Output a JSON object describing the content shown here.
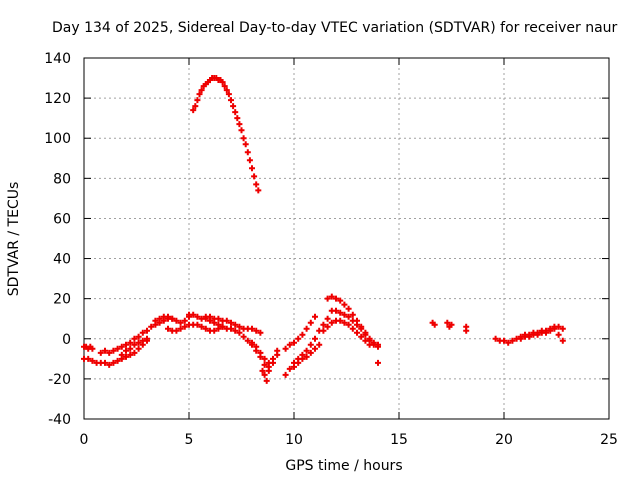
{
  "chart_data": {
    "type": "scatter",
    "title": "Day 134 of 2025, Sidereal Day-to-day VTEC variation (SDTVAR) for receiver naur",
    "xlabel": "GPS time / hours",
    "ylabel": "SDTVAR / TECUs",
    "xlim": [
      0,
      25
    ],
    "ylim": [
      -40,
      140
    ],
    "xticks": [
      "0",
      "5",
      "10",
      "15",
      "20",
      "25"
    ],
    "yticks": [
      "-40",
      "-20",
      "0",
      "20",
      "40",
      "60",
      "80",
      "100",
      "120",
      "140"
    ],
    "grid": true,
    "marker": "plus",
    "color": "#ee0000",
    "series": [
      {
        "name": "SDTVAR",
        "points": [
          [
            0.0,
            -4
          ],
          [
            0.1,
            -4
          ],
          [
            0.2,
            -5
          ],
          [
            0.3,
            -4
          ],
          [
            0.4,
            -5
          ],
          [
            0.0,
            -10
          ],
          [
            0.2,
            -10
          ],
          [
            0.4,
            -11
          ],
          [
            0.6,
            -12
          ],
          [
            0.8,
            -12
          ],
          [
            1.0,
            -12
          ],
          [
            1.2,
            -13
          ],
          [
            1.4,
            -12
          ],
          [
            1.6,
            -11
          ],
          [
            1.8,
            -10
          ],
          [
            2.0,
            -9
          ],
          [
            2.2,
            -8
          ],
          [
            2.4,
            -7
          ],
          [
            2.6,
            -5
          ],
          [
            2.8,
            -3
          ],
          [
            3.0,
            -1
          ],
          [
            0.8,
            -7
          ],
          [
            1.0,
            -6
          ],
          [
            1.2,
            -7
          ],
          [
            1.4,
            -6
          ],
          [
            1.6,
            -5
          ],
          [
            1.8,
            -4
          ],
          [
            2.0,
            -3
          ],
          [
            2.2,
            -2
          ],
          [
            2.4,
            0
          ],
          [
            2.6,
            1
          ],
          [
            2.8,
            3
          ],
          [
            3.0,
            4
          ],
          [
            3.2,
            6
          ],
          [
            3.4,
            7
          ],
          [
            3.6,
            8
          ],
          [
            3.8,
            9
          ],
          [
            4.0,
            10
          ],
          [
            4.2,
            10
          ],
          [
            4.4,
            9
          ],
          [
            4.6,
            8
          ],
          [
            4.8,
            9
          ],
          [
            5.0,
            11
          ],
          [
            1.8,
            -8
          ],
          [
            2.0,
            -6
          ],
          [
            2.2,
            -5
          ],
          [
            2.4,
            -3
          ],
          [
            2.6,
            -2
          ],
          [
            2.8,
            -1
          ],
          [
            3.0,
            0
          ],
          [
            3.4,
            9
          ],
          [
            3.6,
            10
          ],
          [
            3.8,
            11
          ],
          [
            4.0,
            11
          ],
          [
            4.2,
            10
          ],
          [
            4.0,
            5
          ],
          [
            4.2,
            4
          ],
          [
            4.4,
            4
          ],
          [
            4.6,
            5
          ],
          [
            4.8,
            6
          ],
          [
            5.0,
            7
          ],
          [
            5.2,
            7
          ],
          [
            5.4,
            7
          ],
          [
            5.6,
            6
          ],
          [
            5.8,
            5
          ],
          [
            6.0,
            4
          ],
          [
            6.2,
            4
          ],
          [
            6.4,
            5
          ],
          [
            6.6,
            6
          ],
          [
            5.0,
            12
          ],
          [
            5.2,
            12
          ],
          [
            5.4,
            11
          ],
          [
            5.6,
            10
          ],
          [
            5.8,
            10
          ],
          [
            6.0,
            9
          ],
          [
            6.2,
            8
          ],
          [
            6.4,
            7
          ],
          [
            6.6,
            6
          ],
          [
            6.8,
            5
          ],
          [
            7.0,
            5
          ],
          [
            7.2,
            4
          ],
          [
            7.4,
            3
          ],
          [
            7.6,
            1
          ],
          [
            7.8,
            -1
          ],
          [
            8.0,
            -3
          ],
          [
            8.2,
            -6
          ],
          [
            8.4,
            -9
          ],
          [
            8.6,
            -13
          ],
          [
            8.8,
            -16
          ],
          [
            9.0,
            -12
          ],
          [
            9.2,
            -8
          ],
          [
            5.8,
            11
          ],
          [
            6.0,
            11
          ],
          [
            6.2,
            10
          ],
          [
            6.4,
            10
          ],
          [
            6.6,
            9
          ],
          [
            6.8,
            9
          ],
          [
            7.0,
            8
          ],
          [
            7.2,
            7
          ],
          [
            7.4,
            6
          ],
          [
            7.6,
            5
          ],
          [
            7.8,
            5
          ],
          [
            8.0,
            5
          ],
          [
            8.2,
            4
          ],
          [
            8.4,
            3
          ],
          [
            8.0,
            -2
          ],
          [
            8.2,
            -4
          ],
          [
            8.4,
            -7
          ],
          [
            8.6,
            -10
          ],
          [
            8.8,
            -12
          ],
          [
            9.0,
            -10
          ],
          [
            9.2,
            -6
          ],
          [
            8.6,
            -18
          ],
          [
            8.7,
            -21
          ],
          [
            8.8,
            -14
          ],
          [
            8.5,
            -16
          ],
          [
            9.6,
            -18
          ],
          [
            9.8,
            -15
          ],
          [
            10.0,
            -12
          ],
          [
            10.2,
            -10
          ],
          [
            10.4,
            -8
          ],
          [
            10.6,
            -6
          ],
          [
            10.8,
            -3
          ],
          [
            11.0,
            0
          ],
          [
            11.2,
            4
          ],
          [
            11.4,
            7
          ],
          [
            11.6,
            10
          ],
          [
            9.6,
            -5
          ],
          [
            9.8,
            -3
          ],
          [
            10.0,
            -2
          ],
          [
            10.2,
            0
          ],
          [
            10.4,
            2
          ],
          [
            10.6,
            5
          ],
          [
            10.8,
            8
          ],
          [
            11.0,
            11
          ],
          [
            10.0,
            -14
          ],
          [
            10.2,
            -12
          ],
          [
            10.4,
            -10
          ],
          [
            10.6,
            -9
          ],
          [
            10.8,
            -7
          ],
          [
            11.0,
            -5
          ],
          [
            11.2,
            -3
          ],
          [
            11.4,
            4
          ],
          [
            11.6,
            6
          ],
          [
            11.8,
            8
          ],
          [
            12.0,
            9
          ],
          [
            12.2,
            9
          ],
          [
            12.4,
            8
          ],
          [
            12.6,
            7
          ],
          [
            12.8,
            5
          ],
          [
            13.0,
            3
          ],
          [
            13.2,
            1
          ],
          [
            13.4,
            -1
          ],
          [
            13.6,
            -3
          ],
          [
            11.6,
            20
          ],
          [
            11.8,
            21
          ],
          [
            12.0,
            20
          ],
          [
            12.2,
            19
          ],
          [
            12.4,
            17
          ],
          [
            12.6,
            15
          ],
          [
            12.8,
            12
          ],
          [
            13.0,
            9
          ],
          [
            13.2,
            6
          ],
          [
            13.4,
            3
          ],
          [
            13.6,
            0
          ],
          [
            13.8,
            -2
          ],
          [
            14.0,
            -3
          ],
          [
            11.8,
            14
          ],
          [
            12.0,
            14
          ],
          [
            12.2,
            13
          ],
          [
            12.4,
            12
          ],
          [
            12.6,
            11
          ],
          [
            12.8,
            9
          ],
          [
            13.0,
            7
          ],
          [
            13.2,
            5
          ],
          [
            13.4,
            2
          ],
          [
            13.6,
            -1
          ],
          [
            13.8,
            -3
          ],
          [
            14.0,
            -4
          ],
          [
            14.0,
            -12
          ],
          [
            16.6,
            8
          ],
          [
            16.7,
            7
          ],
          [
            17.3,
            8
          ],
          [
            17.4,
            6
          ],
          [
            17.5,
            7
          ],
          [
            18.2,
            6
          ],
          [
            18.2,
            4
          ],
          [
            19.6,
            0
          ],
          [
            19.8,
            -1
          ],
          [
            20.0,
            -1
          ],
          [
            20.2,
            -2
          ],
          [
            20.4,
            -1
          ],
          [
            20.6,
            0
          ],
          [
            20.8,
            1
          ],
          [
            21.0,
            2
          ],
          [
            21.2,
            2
          ],
          [
            21.4,
            3
          ],
          [
            21.6,
            3
          ],
          [
            21.8,
            4
          ],
          [
            22.0,
            4
          ],
          [
            22.2,
            5
          ],
          [
            22.4,
            6
          ],
          [
            22.6,
            6
          ],
          [
            22.8,
            5
          ],
          [
            20.8,
            0
          ],
          [
            21.0,
            1
          ],
          [
            21.2,
            1
          ],
          [
            21.4,
            2
          ],
          [
            21.6,
            2
          ],
          [
            21.8,
            3
          ],
          [
            22.0,
            3
          ],
          [
            22.2,
            4
          ],
          [
            22.4,
            5
          ],
          [
            22.6,
            2
          ],
          [
            22.8,
            -1
          ],
          [
            5.2,
            114
          ],
          [
            5.3,
            116
          ],
          [
            5.4,
            119
          ],
          [
            5.5,
            122
          ],
          [
            5.6,
            124
          ],
          [
            5.7,
            126
          ],
          [
            5.8,
            127
          ],
          [
            5.9,
            128
          ],
          [
            6.0,
            129
          ],
          [
            6.1,
            130
          ],
          [
            6.2,
            130
          ],
          [
            6.3,
            130
          ],
          [
            6.4,
            129
          ],
          [
            6.5,
            129
          ],
          [
            6.6,
            128
          ],
          [
            6.7,
            126
          ],
          [
            6.8,
            124
          ],
          [
            6.9,
            122
          ],
          [
            7.0,
            119
          ],
          [
            7.1,
            116
          ],
          [
            7.2,
            113
          ],
          [
            7.3,
            110
          ],
          [
            7.4,
            107
          ],
          [
            7.5,
            104
          ],
          [
            7.6,
            100
          ],
          [
            7.7,
            97
          ],
          [
            7.8,
            93
          ],
          [
            7.9,
            89
          ],
          [
            8.0,
            85
          ],
          [
            8.1,
            81
          ],
          [
            8.2,
            77
          ],
          [
            8.3,
            74
          ]
        ]
      }
    ]
  }
}
